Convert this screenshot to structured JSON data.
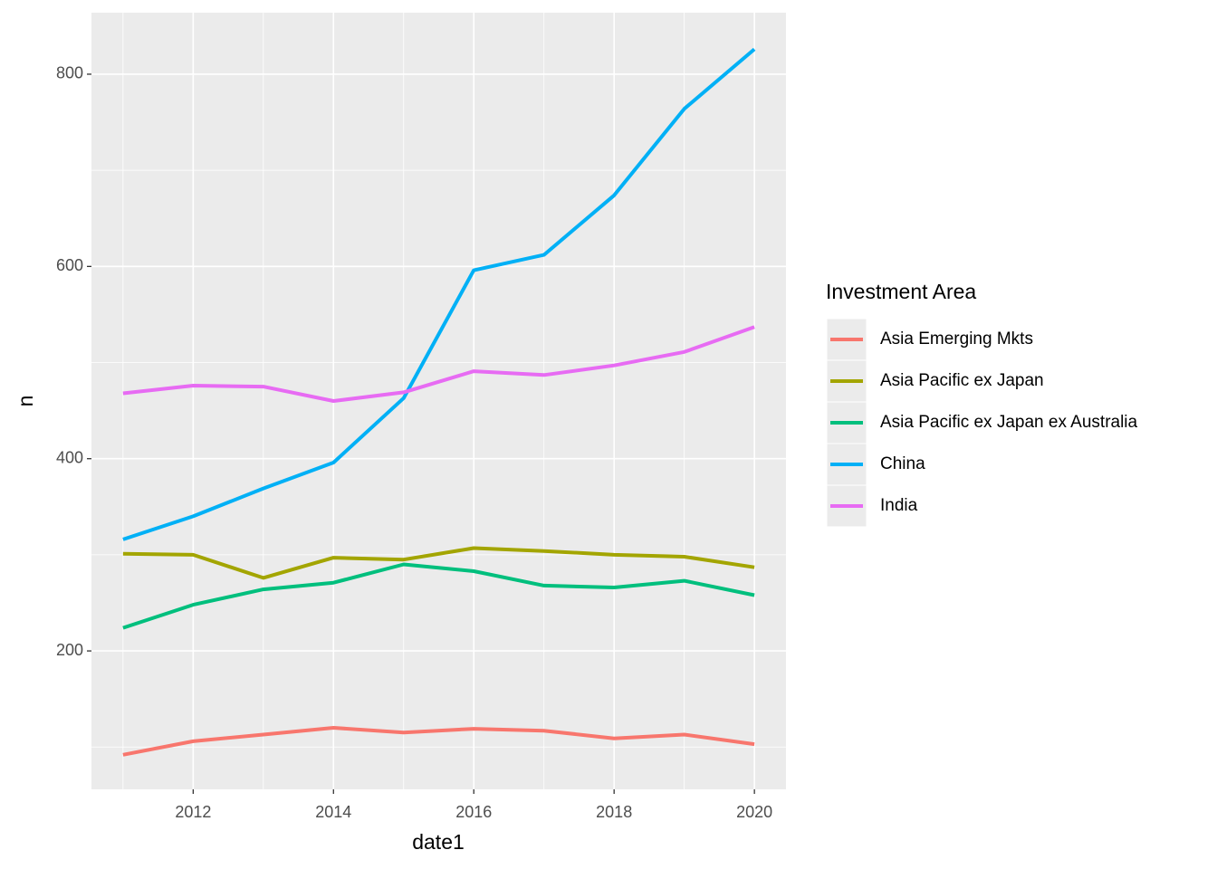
{
  "chart_data": {
    "type": "line",
    "x_label": "date1",
    "y_label": "n",
    "x": [
      2011,
      2012,
      2013,
      2014,
      2015,
      2016,
      2017,
      2018,
      2019,
      2020
    ],
    "series": [
      {
        "name": "Asia Emerging Mkts",
        "color": "#F8766D",
        "values": [
          92,
          106,
          113,
          120,
          115,
          119,
          117,
          109,
          113,
          103
        ]
      },
      {
        "name": "Asia Pacific ex Japan",
        "color": "#A3A500",
        "values": [
          301,
          300,
          276,
          297,
          295,
          307,
          304,
          300,
          298,
          287
        ]
      },
      {
        "name": "Asia Pacific ex Japan ex Australia",
        "color": "#00BF7D",
        "values": [
          224,
          248,
          264,
          271,
          290,
          283,
          268,
          266,
          273,
          258
        ]
      },
      {
        "name": "China",
        "color": "#00B0F6",
        "values": [
          316,
          340,
          369,
          396,
          463,
          596,
          612,
          674,
          764,
          826
        ]
      },
      {
        "name": "India",
        "color": "#E76BF3",
        "values": [
          468,
          476,
          475,
          460,
          469,
          491,
          487,
          497,
          511,
          537
        ]
      }
    ],
    "xlim": [
      2010.55,
      2020.45
    ],
    "ylim": [
      56,
      864
    ],
    "xticks": [
      2012,
      2014,
      2016,
      2018,
      2020
    ],
    "yticks": [
      200,
      400,
      600,
      800
    ],
    "x_minor_grid": [
      2011,
      2013,
      2015,
      2017,
      2019
    ],
    "y_minor_grid": [
      100,
      300,
      500,
      700
    ],
    "grid": true,
    "legend_title": "Investment Area",
    "legend_position": "right"
  }
}
